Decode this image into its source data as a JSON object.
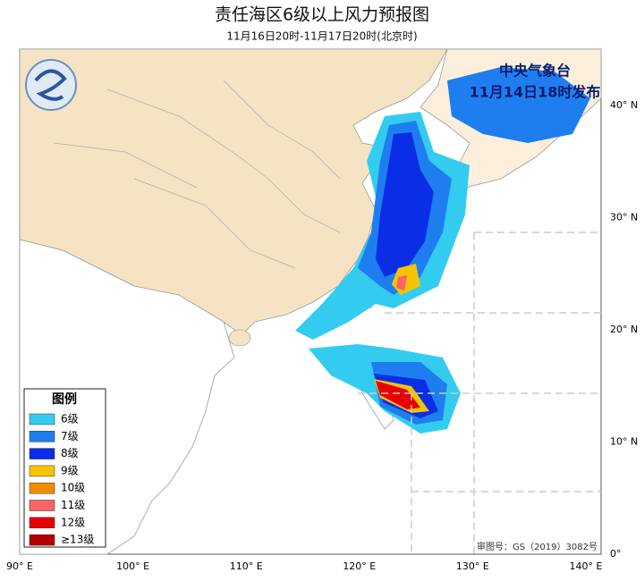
{
  "header": {
    "title": "责任海区6级以上风力预报图",
    "subtitle": "11月16日20时-11月17日20时(北京时)"
  },
  "issuer": {
    "name": "中央气象台",
    "time": "11月14日18时发布"
  },
  "legend": {
    "title": "图例",
    "items": [
      {
        "label": "6级",
        "color": "#33ccf0"
      },
      {
        "label": "7级",
        "color": "#1e7ef0"
      },
      {
        "label": "8级",
        "color": "#0a2ee6"
      },
      {
        "label": "9级",
        "color": "#f5c400"
      },
      {
        "label": "10级",
        "color": "#f08c00"
      },
      {
        "label": "11级",
        "color": "#fa6464"
      },
      {
        "label": "12级",
        "color": "#e60000"
      },
      {
        "label": "≥13级",
        "color": "#b40000"
      }
    ]
  },
  "axes": {
    "lon_labels": [
      "90° E",
      "100° E",
      "110° E",
      "120° E",
      "130° E",
      "140° E"
    ],
    "lat_labels": [
      "40° N",
      "30° N",
      "20° N",
      "10° N",
      "0°"
    ]
  },
  "footer": {
    "approval": "审图号：GS（2019）3082号"
  }
}
